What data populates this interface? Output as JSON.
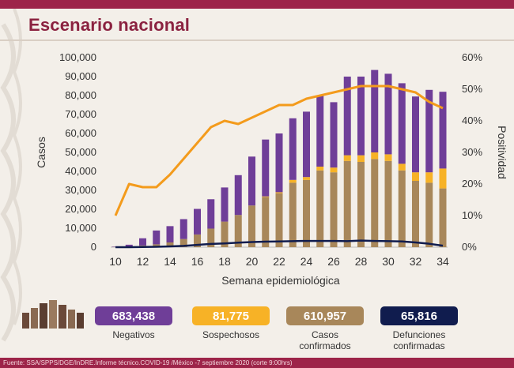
{
  "title": "Escenario nacional",
  "chart_data": {
    "type": "bar",
    "stacked": true,
    "xlabel": "Semana epidemiológica",
    "ylabel": "Casos",
    "y2label": "Positividad",
    "ylim": [
      0,
      100000
    ],
    "y2lim": [
      0,
      60
    ],
    "yticks": [
      "0",
      "10,000",
      "20,000",
      "30,000",
      "40,000",
      "50,000",
      "60,000",
      "70,000",
      "80,000",
      "90,000",
      "100,000"
    ],
    "y2ticks": [
      "0%",
      "10%",
      "20%",
      "30%",
      "40%",
      "50%",
      "60%"
    ],
    "xtick_labels": [
      "10",
      "12",
      "14",
      "16",
      "18",
      "20",
      "22",
      "24",
      "26",
      "28",
      "30",
      "32",
      "34"
    ],
    "weeks": [
      10,
      11,
      12,
      13,
      14,
      15,
      16,
      17,
      18,
      19,
      20,
      21,
      22,
      23,
      24,
      25,
      26,
      27,
      28,
      29,
      30,
      31,
      32,
      33,
      34
    ],
    "series": [
      {
        "name": "Casos confirmados",
        "color": "#a8875a",
        "values": [
          100,
          400,
          900,
          1500,
          2500,
          4300,
          6700,
          9800,
          13500,
          17000,
          22000,
          26500,
          28500,
          34000,
          35500,
          40500,
          39500,
          45500,
          45000,
          46500,
          45500,
          40500,
          35000,
          34000,
          31000
        ]
      },
      {
        "name": "Sospechosos",
        "color": "#f7b226",
        "values": [
          0,
          0,
          0,
          0,
          0,
          0,
          0,
          0,
          0,
          0,
          0,
          300,
          500,
          1500,
          1500,
          2000,
          2500,
          3000,
          3500,
          3500,
          3500,
          3500,
          4500,
          5500,
          10500
        ]
      },
      {
        "name": "Negativos",
        "color": "#6f3e98",
        "values": [
          200,
          900,
          3800,
          7300,
          8600,
          10500,
          13500,
          15500,
          18000,
          21000,
          25800,
          30000,
          31000,
          32500,
          34500,
          37500,
          34500,
          41500,
          41500,
          43500,
          42500,
          42500,
          40000,
          43500,
          40500
        ]
      }
    ],
    "lines": [
      {
        "name": "Positividad",
        "color": "#f39b1c",
        "axis": "right",
        "values": [
          10,
          20,
          19,
          19,
          23,
          28,
          33,
          38,
          40,
          39,
          41,
          43,
          45,
          45,
          47,
          48,
          49,
          50,
          51,
          51,
          51,
          50,
          49,
          46,
          44
        ]
      },
      {
        "name": "Defunciones confirmadas",
        "color": "#101c4e",
        "axis": "left",
        "values": [
          0,
          0,
          100,
          200,
          400,
          700,
          1200,
          1700,
          2000,
          2400,
          2700,
          2900,
          3000,
          3200,
          3300,
          3300,
          3300,
          3200,
          3500,
          3300,
          3200,
          3000,
          2500,
          1800,
          800
        ]
      }
    ]
  },
  "stats": [
    {
      "value": "683,438",
      "label": "Negativos",
      "color": "#6f3e98"
    },
    {
      "value": "81,775",
      "label": "Sospechosos",
      "color": "#f7b226"
    },
    {
      "value": "610,957",
      "label": "Casos\nconfirmados",
      "color": "#a8875a"
    },
    {
      "value": "65,816",
      "label": "Defunciones\nconfirmadas",
      "color": "#101c4e"
    }
  ],
  "footer": "Fuente: SSA/SPPS/DGE/InDRE.Informe técnico.COVID-19 /México -7 septiembre 2020 (corte 9:00hrs)"
}
